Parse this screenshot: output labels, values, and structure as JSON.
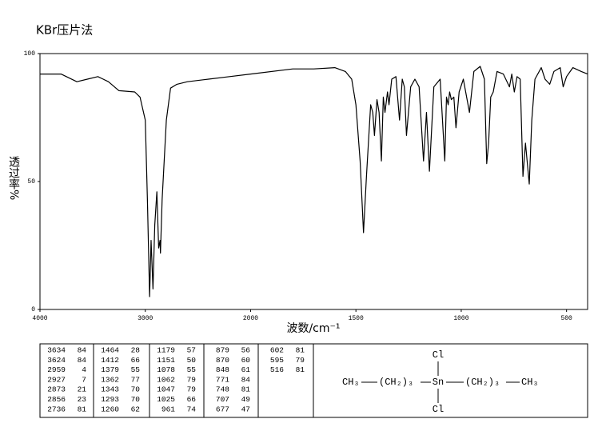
{
  "chart_data": {
    "type": "line",
    "title": "KBr压片法",
    "x_label": "波数/cm⁻¹",
    "y_label": "透过率%",
    "xlim": [
      4000,
      400
    ],
    "xticks": [
      4000,
      3000,
      2000,
      1500,
      1000,
      500
    ],
    "ylim": [
      0,
      100
    ],
    "yticks": [
      0,
      50,
      100
    ],
    "grid": false,
    "x": [
      4000,
      3800,
      3650,
      3550,
      3450,
      3350,
      3250,
      3100,
      3050,
      3000,
      2980,
      2959,
      2945,
      2927,
      2910,
      2890,
      2873,
      2860,
      2856,
      2840,
      2800,
      2760,
      2700,
      2600,
      2400,
      2200,
      2000,
      1800,
      1700,
      1600,
      1550,
      1520,
      1500,
      1480,
      1464,
      1450,
      1430,
      1420,
      1412,
      1400,
      1390,
      1379,
      1370,
      1362,
      1350,
      1343,
      1330,
      1310,
      1293,
      1280,
      1270,
      1260,
      1240,
      1220,
      1200,
      1179,
      1165,
      1151,
      1130,
      1100,
      1078,
      1070,
      1062,
      1055,
      1047,
      1035,
      1025,
      1010,
      990,
      961,
      940,
      910,
      890,
      879,
      870,
      860,
      848,
      830,
      800,
      771,
      760,
      748,
      735,
      720,
      707,
      695,
      677,
      665,
      650,
      620,
      602,
      580,
      560,
      530,
      516,
      500,
      470,
      430,
      400
    ],
    "series": [
      {
        "color": "#000000",
        "values": [
          92,
          92,
          89,
          90,
          91,
          89,
          85.5,
          85,
          83,
          74,
          43,
          5,
          27,
          8,
          33,
          46,
          24,
          27,
          22,
          43,
          74,
          86.5,
          88,
          89,
          90,
          91,
          92,
          94,
          94,
          94.5,
          93,
          90,
          80,
          58,
          30,
          52,
          80,
          77,
          68,
          82,
          77,
          58,
          83,
          77,
          85,
          80,
          90,
          91,
          74,
          90,
          87,
          68,
          87,
          90,
          87,
          58,
          77,
          54,
          87,
          90,
          58,
          83,
          80,
          85,
          82,
          83,
          71,
          85,
          90,
          77,
          93,
          95,
          90,
          57,
          65,
          83,
          85,
          93,
          92,
          87,
          92,
          85,
          91,
          90,
          52,
          65,
          49,
          74,
          90,
          94.5,
          90,
          88,
          93,
          94.5,
          87,
          91,
          94.5,
          93,
          92
        ]
      }
    ]
  },
  "peak_table": {
    "columns": [
      [
        [
          3634,
          84
        ],
        [
          3624,
          84
        ],
        [
          2959,
          4
        ],
        [
          2927,
          7
        ],
        [
          2873,
          21
        ],
        [
          2856,
          23
        ],
        [
          2736,
          81
        ]
      ],
      [
        [
          1464,
          28
        ],
        [
          1412,
          66
        ],
        [
          1379,
          55
        ],
        [
          1362,
          77
        ],
        [
          1343,
          70
        ],
        [
          1293,
          70
        ],
        [
          1260,
          62
        ]
      ],
      [
        [
          1179,
          57
        ],
        [
          1151,
          50
        ],
        [
          1078,
          55
        ],
        [
          1062,
          79
        ],
        [
          1047,
          79
        ],
        [
          1025,
          66
        ],
        [
          961,
          74
        ]
      ],
      [
        [
          879,
          56
        ],
        [
          870,
          60
        ],
        [
          848,
          61
        ],
        [
          771,
          84
        ],
        [
          748,
          81
        ],
        [
          707,
          49
        ],
        [
          677,
          47
        ]
      ],
      [
        [
          602,
          81
        ],
        [
          595,
          79
        ],
        [
          516,
          81
        ]
      ]
    ]
  },
  "structure": {
    "top": "Cl",
    "bottom": "Cl",
    "left_end": "CH₃",
    "left_chain": "(CH₂)₃",
    "center": "Sn",
    "right_chain": "(CH₂)₃",
    "right_end": "CH₃"
  }
}
